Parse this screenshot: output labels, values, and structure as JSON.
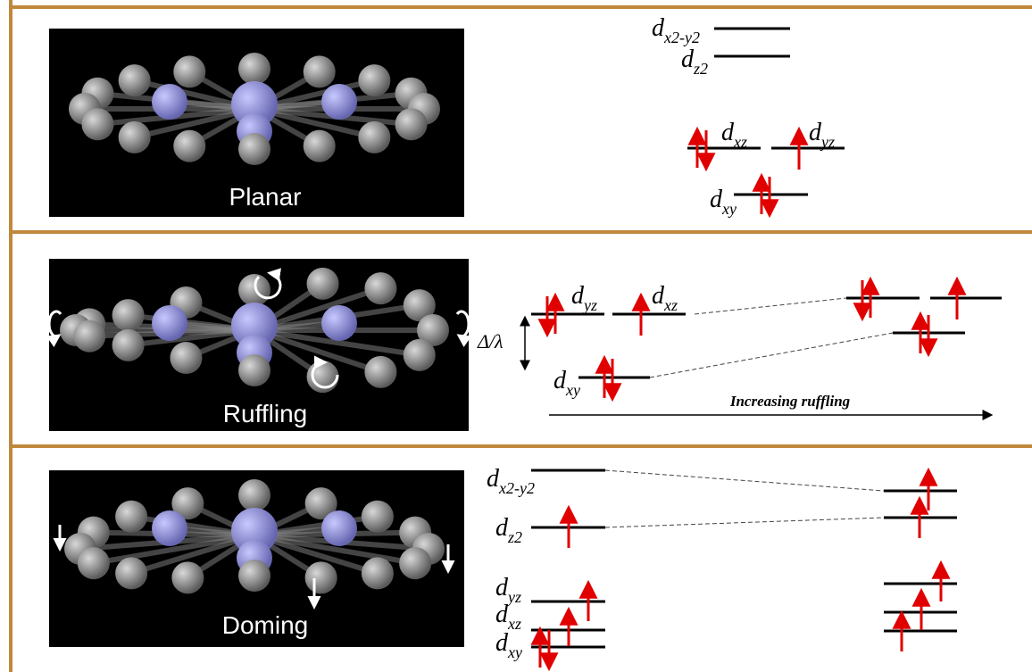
{
  "panels": [
    {
      "label": "Planar",
      "orbitals": [
        {
          "d": "d",
          "sub": "x2-y2"
        },
        {
          "d": "d",
          "sub": "z2"
        },
        {
          "d": "d",
          "sub": "xz"
        },
        {
          "d": "d",
          "sub": "yz"
        },
        {
          "d": "d",
          "sub": "xy"
        }
      ]
    },
    {
      "label": "Ruffling",
      "orbitals": [
        {
          "d": "d",
          "sub": "yz"
        },
        {
          "d": "d",
          "sub": "xz"
        },
        {
          "d": "d",
          "sub": "xy"
        }
      ],
      "gap": "Δ/λ",
      "trend": "Increasing ruffling"
    },
    {
      "label": "Doming",
      "orbitals": [
        {
          "d": "d",
          "sub": "x2-y2"
        },
        {
          "d": "d",
          "sub": "z2"
        },
        {
          "d": "d",
          "sub": "yz"
        },
        {
          "d": "d",
          "sub": "xz"
        },
        {
          "d": "d",
          "sub": "xy"
        }
      ]
    }
  ]
}
